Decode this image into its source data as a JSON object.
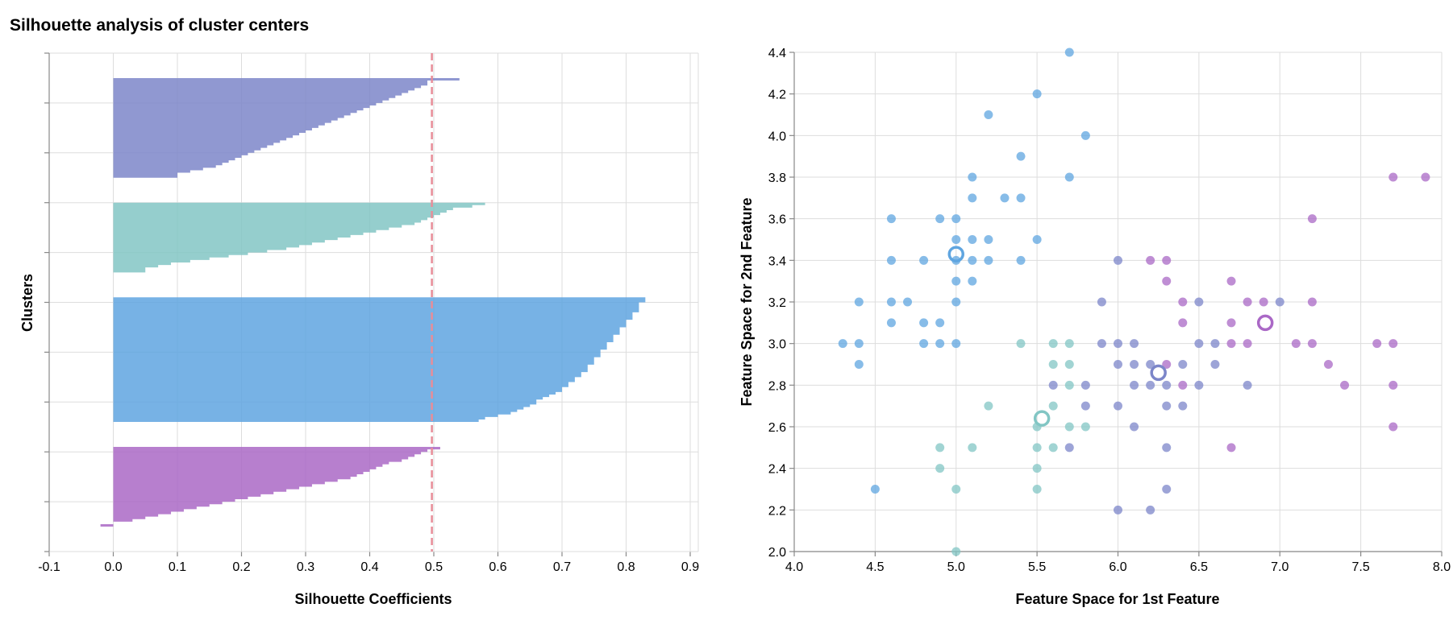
{
  "title": "Silhouette analysis of cluster centers",
  "colors": {
    "cluster_0": "#7c86c9",
    "cluster_1": "#82c6c4",
    "cluster_2": "#5fa5e0",
    "cluster_3": "#aa68c6",
    "mean_line": "#e88d98",
    "grid": "#dddddd"
  },
  "chart_data": [
    {
      "type": "area",
      "xlabel": "Silhouette Coefficients",
      "ylabel": "Clusters",
      "xlim": [
        -0.1,
        0.9
      ],
      "ylim": [
        0,
        200
      ],
      "xticks": [
        "-0.1",
        "0.0",
        "0.1",
        "0.2",
        "0.3",
        "0.4",
        "0.5",
        "0.6",
        "0.7",
        "0.8",
        "0.9"
      ],
      "grid": true,
      "mean_silhouette": 0.497,
      "clusters": [
        {
          "cluster": 0,
          "values": [
            0.54,
            0.49,
            0.49,
            0.48,
            0.47,
            0.46,
            0.45,
            0.44,
            0.43,
            0.42,
            0.41,
            0.4,
            0.39,
            0.38,
            0.37,
            0.36,
            0.35,
            0.34,
            0.33,
            0.32,
            0.31,
            0.3,
            0.29,
            0.28,
            0.27,
            0.26,
            0.25,
            0.24,
            0.23,
            0.22,
            0.21,
            0.2,
            0.19,
            0.18,
            0.17,
            0.16,
            0.14,
            0.12,
            0.1,
            0.1
          ]
        },
        {
          "cluster": 1,
          "values": [
            0.58,
            0.56,
            0.53,
            0.52,
            0.51,
            0.5,
            0.49,
            0.48,
            0.47,
            0.45,
            0.43,
            0.41,
            0.39,
            0.37,
            0.35,
            0.33,
            0.31,
            0.29,
            0.27,
            0.24,
            0.21,
            0.18,
            0.15,
            0.12,
            0.09,
            0.07,
            0.05,
            0.05
          ]
        },
        {
          "cluster": 2,
          "values": [
            0.83,
            0.83,
            0.82,
            0.82,
            0.82,
            0.82,
            0.81,
            0.81,
            0.81,
            0.8,
            0.8,
            0.8,
            0.79,
            0.79,
            0.79,
            0.78,
            0.78,
            0.78,
            0.77,
            0.77,
            0.77,
            0.76,
            0.76,
            0.76,
            0.75,
            0.75,
            0.75,
            0.74,
            0.74,
            0.74,
            0.73,
            0.73,
            0.72,
            0.72,
            0.71,
            0.71,
            0.7,
            0.7,
            0.69,
            0.68,
            0.67,
            0.66,
            0.66,
            0.65,
            0.64,
            0.63,
            0.62,
            0.6,
            0.58,
            0.57
          ]
        },
        {
          "cluster": 3,
          "values": [
            0.51,
            0.49,
            0.48,
            0.47,
            0.46,
            0.45,
            0.43,
            0.42,
            0.41,
            0.4,
            0.39,
            0.38,
            0.37,
            0.35,
            0.33,
            0.31,
            0.29,
            0.27,
            0.25,
            0.23,
            0.21,
            0.19,
            0.17,
            0.15,
            0.13,
            0.11,
            0.09,
            0.07,
            0.05,
            0.03,
            0.0,
            -0.02
          ]
        }
      ]
    },
    {
      "type": "scatter",
      "xlabel": "Feature Space for 1st Feature",
      "ylabel": "Feature Space for 2nd Feature",
      "xlim": [
        4.0,
        8.0
      ],
      "ylim": [
        2.0,
        4.4
      ],
      "xticks": [
        "4.0",
        "4.5",
        "5.0",
        "5.5",
        "6.0",
        "6.5",
        "7.0",
        "7.5",
        "8.0"
      ],
      "yticks": [
        "2.0",
        "2.2",
        "2.4",
        "2.6",
        "2.8",
        "3.0",
        "3.2",
        "3.4",
        "3.6",
        "3.8",
        "4.0",
        "4.2",
        "4.4"
      ],
      "grid": true,
      "points": {
        "0": [
          [
            6.0,
            3.4
          ],
          [
            5.9,
            3.2
          ],
          [
            6.5,
            3.2
          ],
          [
            7.0,
            3.2
          ],
          [
            5.9,
            3.0
          ],
          [
            6.0,
            3.0
          ],
          [
            6.1,
            3.0
          ],
          [
            6.5,
            3.0
          ],
          [
            6.6,
            3.0
          ],
          [
            6.0,
            2.9
          ],
          [
            6.1,
            2.9
          ],
          [
            6.2,
            2.9
          ],
          [
            6.4,
            2.9
          ],
          [
            6.6,
            2.9
          ],
          [
            5.6,
            2.8
          ],
          [
            5.8,
            2.8
          ],
          [
            6.1,
            2.8
          ],
          [
            6.2,
            2.8
          ],
          [
            6.3,
            2.8
          ],
          [
            6.5,
            2.8
          ],
          [
            6.8,
            2.8
          ],
          [
            5.8,
            2.7
          ],
          [
            6.0,
            2.7
          ],
          [
            6.3,
            2.7
          ],
          [
            6.4,
            2.7
          ],
          [
            6.1,
            2.6
          ],
          [
            5.7,
            2.5
          ],
          [
            6.3,
            2.5
          ],
          [
            6.3,
            2.3
          ],
          [
            6.0,
            2.2
          ],
          [
            6.2,
            2.2
          ]
        ],
        "1": [
          [
            5.4,
            3.0
          ],
          [
            5.6,
            3.0
          ],
          [
            5.7,
            3.0
          ],
          [
            5.6,
            2.9
          ],
          [
            5.7,
            2.9
          ],
          [
            5.7,
            2.8
          ],
          [
            5.2,
            2.7
          ],
          [
            5.6,
            2.7
          ],
          [
            5.5,
            2.6
          ],
          [
            5.7,
            2.6
          ],
          [
            5.8,
            2.6
          ],
          [
            4.9,
            2.5
          ],
          [
            5.1,
            2.5
          ],
          [
            5.5,
            2.5
          ],
          [
            5.6,
            2.5
          ],
          [
            4.9,
            2.4
          ],
          [
            5.5,
            2.4
          ],
          [
            5.0,
            2.3
          ],
          [
            5.5,
            2.3
          ],
          [
            5.0,
            2.0
          ]
        ],
        "2": [
          [
            5.7,
            4.4
          ],
          [
            5.5,
            4.2
          ],
          [
            5.2,
            4.1
          ],
          [
            5.8,
            4.0
          ],
          [
            5.4,
            3.9
          ],
          [
            5.1,
            3.8
          ],
          [
            5.7,
            3.8
          ],
          [
            5.1,
            3.7
          ],
          [
            5.3,
            3.7
          ],
          [
            5.4,
            3.7
          ],
          [
            4.6,
            3.6
          ],
          [
            4.9,
            3.6
          ],
          [
            5.0,
            3.6
          ],
          [
            5.0,
            3.5
          ],
          [
            5.1,
            3.5
          ],
          [
            5.2,
            3.5
          ],
          [
            5.5,
            3.5
          ],
          [
            4.6,
            3.4
          ],
          [
            4.8,
            3.4
          ],
          [
            5.0,
            3.4
          ],
          [
            5.1,
            3.4
          ],
          [
            5.2,
            3.4
          ],
          [
            5.4,
            3.4
          ],
          [
            5.0,
            3.3
          ],
          [
            5.1,
            3.3
          ],
          [
            4.4,
            3.2
          ],
          [
            4.6,
            3.2
          ],
          [
            4.7,
            3.2
          ],
          [
            5.0,
            3.2
          ],
          [
            4.6,
            3.1
          ],
          [
            4.8,
            3.1
          ],
          [
            4.9,
            3.1
          ],
          [
            4.3,
            3.0
          ],
          [
            4.4,
            3.0
          ],
          [
            4.8,
            3.0
          ],
          [
            4.9,
            3.0
          ],
          [
            5.0,
            3.0
          ],
          [
            4.4,
            2.9
          ],
          [
            4.5,
            2.3
          ]
        ],
        "3": [
          [
            7.7,
            3.8
          ],
          [
            7.9,
            3.8
          ],
          [
            7.2,
            3.6
          ],
          [
            6.2,
            3.4
          ],
          [
            6.3,
            3.4
          ],
          [
            6.3,
            3.3
          ],
          [
            6.7,
            3.3
          ],
          [
            6.4,
            3.2
          ],
          [
            6.8,
            3.2
          ],
          [
            6.9,
            3.2
          ],
          [
            7.2,
            3.2
          ],
          [
            6.4,
            3.1
          ],
          [
            6.7,
            3.1
          ],
          [
            6.7,
            3.0
          ],
          [
            6.8,
            3.0
          ],
          [
            7.1,
            3.0
          ],
          [
            7.2,
            3.0
          ],
          [
            7.6,
            3.0
          ],
          [
            7.7,
            3.0
          ],
          [
            6.3,
            2.9
          ],
          [
            7.3,
            2.9
          ],
          [
            6.4,
            2.8
          ],
          [
            7.4,
            2.8
          ],
          [
            7.7,
            2.8
          ],
          [
            7.7,
            2.6
          ],
          [
            6.7,
            2.5
          ]
        ]
      },
      "centers": {
        "0": [
          6.25,
          2.86
        ],
        "1": [
          5.53,
          2.64
        ],
        "2": [
          5.0,
          3.43
        ],
        "3": [
          6.91,
          3.1
        ]
      }
    }
  ]
}
